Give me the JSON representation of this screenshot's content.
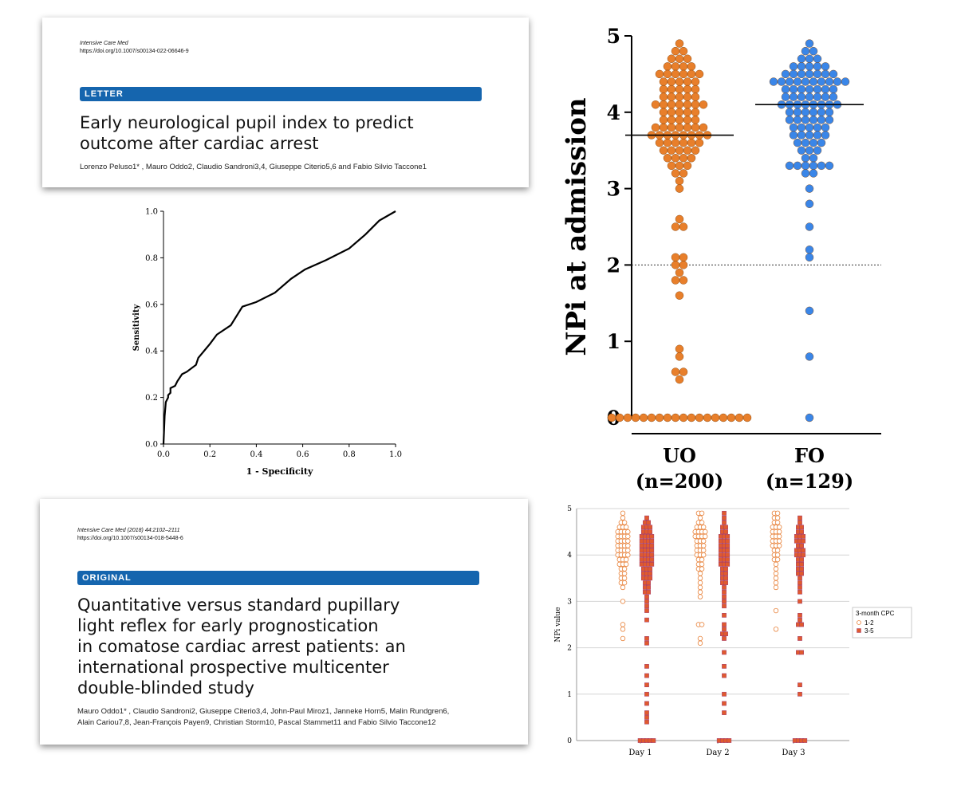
{
  "paper1": {
    "journal": "Intensive Care Med",
    "doi": "https://doi.org/10.1007/s00134-022-06646-9",
    "tag": "LETTER",
    "title_lines": [
      "Early neurological pupil index to predict",
      "outcome after cardiac arrest"
    ],
    "authors": "Lorenzo Peluso1* , Mauro Oddo2, Claudio Sandroni3,4, Giuseppe Citerio5,6 and Fabio Silvio Taccone1"
  },
  "paper2": {
    "journal": "Intensive Care Med (2018) 44:2102–2111",
    "doi": "https://doi.org/10.1007/s00134-018-5448-6",
    "tag": "ORIGINAL",
    "title_lines": [
      "Quantitative versus standard pupillary",
      "light reflex for early prognostication",
      "in comatose cardiac arrest patients: an",
      "international prospective multicenter",
      "double-blinded study"
    ],
    "authors_lines": [
      "Mauro Oddo1* , Claudio Sandroni2, Giuseppe Citerio3,4, John-Paul Miroz1, Janneke Horn5, Malin Rundgren6,",
      "Alain Cariou7,8, Jean-François Payen9, Christian Storm10, Pascal Stammet11 and Fabio Silvio Taccone12"
    ]
  },
  "chart_data": [
    {
      "type": "line",
      "title": "",
      "xlabel": "1 - Specificity",
      "ylabel": "Sensitivity",
      "xlim": [
        0,
        1
      ],
      "ylim": [
        0,
        1
      ],
      "xticks": [
        "0.0",
        "0.2",
        "0.4",
        "0.6",
        "0.8",
        "1.0"
      ],
      "yticks": [
        "0.0",
        "0.2",
        "0.4",
        "0.6",
        "0.8",
        "1.0"
      ],
      "series": [
        {
          "x": [
            0,
            0.005,
            0.01,
            0.02,
            0.02,
            0.03,
            0.03,
            0.05,
            0.06,
            0.08,
            0.1,
            0.14,
            0.15,
            0.2,
            0.23,
            0.29,
            0.34,
            0.4,
            0.48,
            0.55,
            0.61,
            0.7,
            0.8,
            0.87,
            0.93,
            1.0
          ],
          "y": [
            0,
            0.12,
            0.18,
            0.2,
            0.21,
            0.22,
            0.24,
            0.25,
            0.27,
            0.3,
            0.31,
            0.34,
            0.37,
            0.43,
            0.47,
            0.51,
            0.59,
            0.61,
            0.65,
            0.71,
            0.75,
            0.79,
            0.84,
            0.9,
            0.96,
            1.0
          ]
        }
      ],
      "grid": false
    },
    {
      "type": "scatter",
      "title": "",
      "ylabel": "NPi at admission",
      "ylim": [
        0,
        5
      ],
      "yticks": [
        "0",
        "1",
        "2",
        "3",
        "4",
        "5"
      ],
      "categories": [
        "UO\n(n=200)",
        "FO\n(n=129)"
      ],
      "category_lines": [
        [
          "UO",
          "(n=200)"
        ],
        [
          "FO",
          "(n=129)"
        ]
      ],
      "medians": [
        3.7,
        4.1
      ],
      "threshold": 2,
      "colors": [
        "#e87f2b",
        "#3a86e8"
      ],
      "series": [
        {
          "name": "UO",
          "values": [
            4.9,
            4.8,
            4.8,
            4.7,
            4.7,
            4.7,
            4.6,
            4.6,
            4.6,
            4.6,
            4.5,
            4.5,
            4.5,
            4.5,
            4.5,
            4.5,
            4.4,
            4.4,
            4.4,
            4.4,
            4.4,
            4.3,
            4.3,
            4.3,
            4.3,
            4.3,
            4.2,
            4.2,
            4.2,
            4.2,
            4.2,
            4.1,
            4.1,
            4.1,
            4.1,
            4.1,
            4.1,
            4.1,
            4.0,
            4.0,
            4.0,
            4.0,
            4.0,
            3.9,
            3.9,
            3.9,
            3.9,
            3.9,
            3.8,
            3.8,
            3.8,
            3.8,
            3.8,
            3.8,
            3.8,
            3.7,
            3.7,
            3.7,
            3.7,
            3.7,
            3.7,
            3.7,
            3.7,
            3.6,
            3.6,
            3.6,
            3.6,
            3.6,
            3.6,
            3.5,
            3.5,
            3.5,
            3.5,
            3.5,
            3.4,
            3.4,
            3.4,
            3.4,
            3.3,
            3.3,
            3.3,
            3.2,
            3.2,
            3.1,
            3.0,
            2.6,
            2.5,
            2.5,
            2.1,
            2.1,
            2.0,
            2.0,
            1.9,
            1.8,
            1.8,
            1.6,
            0.9,
            0.8,
            0.6,
            0.6,
            0.5,
            0,
            0,
            0,
            0,
            0,
            0,
            0,
            0,
            0,
            0,
            0,
            0,
            0,
            0,
            0,
            0,
            0,
            0
          ]
        },
        {
          "name": "FO",
          "values": [
            4.9,
            4.8,
            4.8,
            4.7,
            4.7,
            4.7,
            4.6,
            4.6,
            4.6,
            4.6,
            4.6,
            4.5,
            4.5,
            4.5,
            4.5,
            4.5,
            4.5,
            4.5,
            4.4,
            4.4,
            4.4,
            4.4,
            4.4,
            4.4,
            4.4,
            4.4,
            4.4,
            4.4,
            4.3,
            4.3,
            4.3,
            4.3,
            4.3,
            4.3,
            4.3,
            4.2,
            4.2,
            4.2,
            4.2,
            4.2,
            4.2,
            4.2,
            4.1,
            4.1,
            4.1,
            4.1,
            4.1,
            4.1,
            4.1,
            4.1,
            4.0,
            4.0,
            4.0,
            4.0,
            4.0,
            4.0,
            3.9,
            3.9,
            3.9,
            3.9,
            3.9,
            3.9,
            3.8,
            3.8,
            3.8,
            3.8,
            3.8,
            3.7,
            3.7,
            3.7,
            3.7,
            3.7,
            3.6,
            3.6,
            3.6,
            3.6,
            3.5,
            3.5,
            3.5,
            3.4,
            3.4,
            3.3,
            3.3,
            3.3,
            3.3,
            3.3,
            3.3,
            3.2,
            3.2,
            3.0,
            2.8,
            2.5,
            2.2,
            2.1,
            1.4,
            0.8,
            0
          ]
        }
      ]
    },
    {
      "type": "scatter",
      "title": "",
      "ylabel": "NPi value",
      "ylim": [
        0,
        5
      ],
      "yticks": [
        "0",
        "1",
        "2",
        "3",
        "4",
        "5"
      ],
      "categories": [
        "Day 1",
        "Day 2",
        "Day 3"
      ],
      "legend": {
        "title": "3-month CPC",
        "entries": [
          "1-2",
          "3-5"
        ],
        "position": "right"
      },
      "grid": true,
      "series": [
        {
          "name": "1-2",
          "marker": "open-circle",
          "color": "#e8823a",
          "days": [
            [
              4.9,
              4.8,
              4.7,
              4.7,
              4.6,
              4.6,
              4.6,
              4.5,
              4.5,
              4.5,
              4.5,
              4.4,
              4.4,
              4.4,
              4.4,
              4.3,
              4.3,
              4.3,
              4.3,
              4.2,
              4.2,
              4.2,
              4.2,
              4.1,
              4.1,
              4.1,
              4.1,
              4.0,
              4.0,
              4.0,
              4.0,
              3.9,
              3.9,
              3.9,
              3.8,
              3.8,
              3.8,
              3.7,
              3.7,
              3.6,
              3.6,
              3.5,
              3.5,
              3.4,
              3.4,
              3.3,
              3.0,
              2.5,
              2.4,
              2.2
            ],
            [
              4.9,
              4.9,
              4.8,
              4.7,
              4.7,
              4.6,
              4.6,
              4.6,
              4.5,
              4.5,
              4.5,
              4.5,
              4.4,
              4.4,
              4.4,
              4.4,
              4.3,
              4.3,
              4.3,
              4.2,
              4.2,
              4.2,
              4.1,
              4.1,
              4.1,
              4.0,
              4.0,
              4.0,
              3.9,
              3.9,
              3.8,
              3.8,
              3.7,
              3.7,
              3.6,
              3.5,
              3.4,
              3.3,
              3.2,
              3.1,
              2.5,
              2.5,
              2.2,
              2.1
            ],
            [
              4.9,
              4.9,
              4.8,
              4.8,
              4.7,
              4.7,
              4.6,
              4.6,
              4.6,
              4.5,
              4.5,
              4.5,
              4.4,
              4.4,
              4.4,
              4.3,
              4.3,
              4.3,
              4.2,
              4.2,
              4.2,
              4.1,
              4.1,
              4.0,
              4.0,
              3.9,
              3.9,
              3.8,
              3.7,
              3.6,
              3.5,
              3.4,
              3.3,
              2.8,
              2.4
            ]
          ]
        },
        {
          "name": "3-5",
          "marker": "filled-square",
          "color": "#e05a2e",
          "days": [
            [
              4.8,
              4.7,
              4.7,
              4.6,
              4.6,
              4.6,
              4.5,
              4.5,
              4.5,
              4.4,
              4.4,
              4.4,
              4.4,
              4.3,
              4.3,
              4.3,
              4.3,
              4.2,
              4.2,
              4.2,
              4.2,
              4.1,
              4.1,
              4.1,
              4.1,
              4.0,
              4.0,
              4.0,
              4.0,
              3.9,
              3.9,
              3.9,
              3.9,
              3.8,
              3.8,
              3.8,
              3.8,
              3.7,
              3.7,
              3.7,
              3.6,
              3.6,
              3.6,
              3.5,
              3.5,
              3.5,
              3.4,
              3.4,
              3.3,
              3.3,
              3.2,
              3.2,
              3.1,
              3.0,
              2.9,
              2.8,
              2.6,
              2.2,
              2.1,
              1.6,
              1.4,
              1.2,
              1.0,
              0.8,
              0.6,
              0.5,
              0.4,
              0,
              0,
              0,
              0,
              0
            ],
            [
              4.9,
              4.8,
              4.7,
              4.6,
              4.6,
              4.5,
              4.5,
              4.4,
              4.4,
              4.4,
              4.3,
              4.3,
              4.3,
              4.2,
              4.2,
              4.2,
              4.1,
              4.1,
              4.1,
              4.0,
              4.0,
              4.0,
              3.9,
              3.9,
              3.9,
              3.8,
              3.8,
              3.8,
              3.7,
              3.7,
              3.6,
              3.6,
              3.5,
              3.5,
              3.4,
              3.4,
              3.3,
              3.2,
              3.1,
              3.0,
              2.9,
              2.7,
              2.5,
              2.4,
              2.3,
              2.3,
              2.2,
              1.9,
              1.6,
              1.4,
              1.0,
              0.8,
              0.6,
              0,
              0,
              0,
              0
            ],
            [
              4.8,
              4.7,
              4.6,
              4.6,
              4.5,
              4.5,
              4.4,
              4.4,
              4.4,
              4.3,
              4.3,
              4.3,
              4.2,
              4.2,
              4.1,
              4.1,
              4.1,
              4.0,
              4.0,
              4.0,
              3.9,
              3.9,
              3.8,
              3.8,
              3.7,
              3.7,
              3.6,
              3.6,
              3.5,
              3.4,
              3.3,
              3.2,
              3.0,
              2.7,
              2.6,
              2.5,
              2.5,
              2.2,
              1.9,
              1.9,
              1.2,
              1.0,
              0,
              0,
              0,
              0
            ]
          ]
        }
      ]
    }
  ]
}
